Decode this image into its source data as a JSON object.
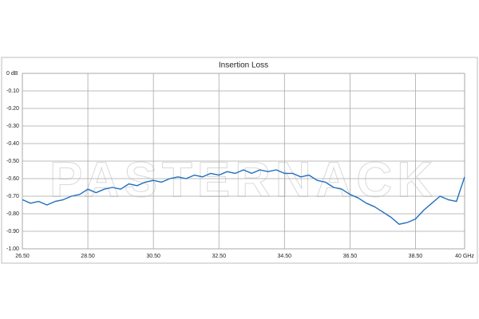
{
  "chart_data": {
    "type": "line",
    "title": "Insertion Loss",
    "watermark": "PASTERNACK",
    "color": "#1f6fbf",
    "grid": true,
    "x": [
      26.5,
      26.75,
      27,
      27.25,
      27.5,
      27.75,
      28,
      28.25,
      28.5,
      28.75,
      29,
      29.25,
      29.5,
      29.75,
      30,
      30.25,
      30.5,
      30.75,
      31,
      31.25,
      31.5,
      31.75,
      32,
      32.25,
      32.5,
      32.75,
      33,
      33.25,
      33.5,
      33.75,
      34,
      34.25,
      34.5,
      34.75,
      35,
      35.25,
      35.5,
      35.75,
      36,
      36.25,
      36.5,
      36.75,
      37,
      37.25,
      37.5,
      37.75,
      38,
      38.25,
      38.5,
      38.75,
      39,
      39.25,
      39.5,
      39.75,
      40
    ],
    "values": [
      -0.72,
      -0.74,
      -0.73,
      -0.75,
      -0.73,
      -0.72,
      -0.7,
      -0.69,
      -0.66,
      -0.68,
      -0.66,
      -0.65,
      -0.66,
      -0.63,
      -0.64,
      -0.62,
      -0.61,
      -0.62,
      -0.6,
      -0.59,
      -0.6,
      -0.58,
      -0.59,
      -0.57,
      -0.58,
      -0.56,
      -0.57,
      -0.55,
      -0.57,
      -0.55,
      -0.56,
      -0.55,
      -0.57,
      -0.57,
      -0.59,
      -0.58,
      -0.61,
      -0.62,
      -0.65,
      -0.66,
      -0.69,
      -0.71,
      -0.74,
      -0.76,
      -0.79,
      -0.82,
      -0.86,
      -0.85,
      -0.83,
      -0.78,
      -0.74,
      -0.7,
      -0.72,
      -0.73,
      -0.59
    ],
    "xlim": [
      26.5,
      40
    ],
    "xticks": [
      {
        "value": 26.5,
        "label": "26.50"
      },
      {
        "value": 28.5,
        "label": "28.50"
      },
      {
        "value": 30.5,
        "label": "30.50"
      },
      {
        "value": 32.5,
        "label": "32.50"
      },
      {
        "value": 34.5,
        "label": "34.50"
      },
      {
        "value": 36.5,
        "label": "36.50"
      },
      {
        "value": 38.5,
        "label": "38.50"
      },
      {
        "value": 40,
        "label": "40 GHz"
      }
    ],
    "ylim": [
      -1,
      0
    ],
    "yticks": [
      {
        "value": 0,
        "label": "0 dB"
      },
      {
        "value": -0.1,
        "label": "-0.10"
      },
      {
        "value": -0.2,
        "label": "-0.20"
      },
      {
        "value": -0.3,
        "label": "-0.30"
      },
      {
        "value": -0.4,
        "label": "-0.40"
      },
      {
        "value": -0.5,
        "label": "-0.50"
      },
      {
        "value": -0.6,
        "label": "-0.60"
      },
      {
        "value": -0.7,
        "label": "-0.70"
      },
      {
        "value": -0.8,
        "label": "-0.80"
      },
      {
        "value": -0.9,
        "label": "-0.90"
      },
      {
        "value": -1,
        "label": "-1.00"
      }
    ]
  }
}
